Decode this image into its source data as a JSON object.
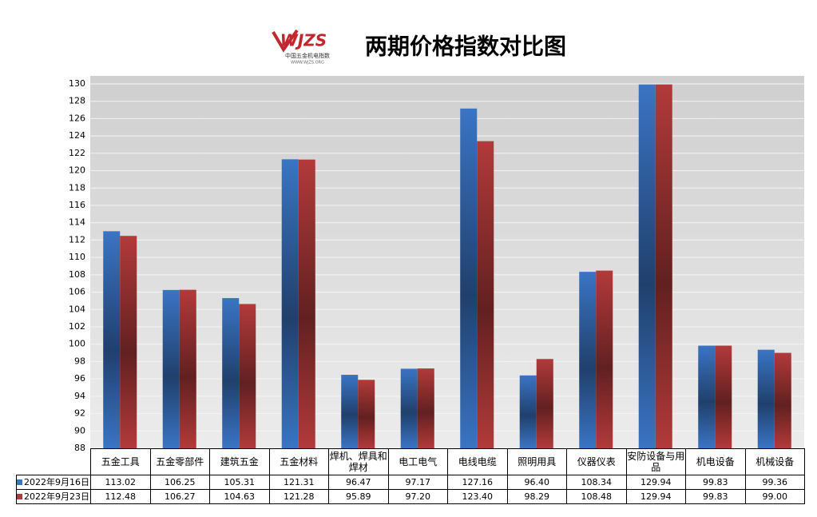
{
  "chart_data": {
    "type": "bar",
    "title": "两期价格指数对比图",
    "logo": {
      "mark": "WJZS",
      "text": "中国五金机电指数",
      "url": "WWW.WJZS.ORG"
    },
    "categories": [
      "五金工具",
      "五金零部件",
      "建筑五金",
      "五金材料",
      "焊机、焊具和焊材",
      "电工电气",
      "电线电缆",
      "照明用具",
      "仪器仪表",
      "安防设备与用品",
      "机电设备",
      "机械设备"
    ],
    "series": [
      {
        "name": "2022年9月16日",
        "color": "#3a74c4",
        "values": [
          113.02,
          106.25,
          105.31,
          121.31,
          96.47,
          97.17,
          127.16,
          96.4,
          108.34,
          129.94,
          99.83,
          99.36
        ],
        "value_labels": [
          "113.02",
          "106.25",
          "105.31",
          "121.31",
          "96.47",
          "97.17",
          "127.16",
          "96.40",
          "108.34",
          "129.94",
          "99.83",
          "99.36"
        ]
      },
      {
        "name": "2022年9月23日",
        "color": "#b23a3a",
        "values": [
          112.48,
          106.27,
          104.63,
          121.28,
          95.89,
          97.2,
          123.4,
          98.29,
          108.48,
          129.94,
          99.83,
          99.0
        ],
        "value_labels": [
          "112.48",
          "106.27",
          "104.63",
          "121.28",
          "95.89",
          "97.20",
          "123.40",
          "98.29",
          "108.48",
          "129.94",
          "99.83",
          "99.00"
        ]
      }
    ],
    "ylim": [
      88,
      130
    ],
    "yticks": [
      88,
      90,
      92,
      94,
      96,
      98,
      100,
      102,
      104,
      106,
      108,
      110,
      112,
      114,
      116,
      118,
      120,
      122,
      124,
      126,
      128,
      130
    ],
    "grid": true
  }
}
